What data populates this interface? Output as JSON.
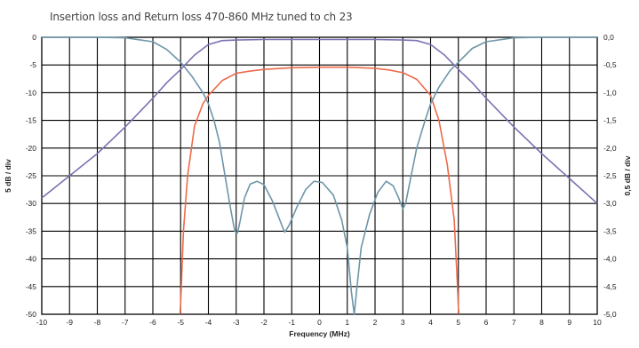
{
  "chart_data": {
    "type": "line",
    "title": "Insertion loss and Return loss 470-860 MHz tuned to ch 23",
    "xlabel": "Frequency (MHz)",
    "ylabel_left": "5 dB / div",
    "ylabel_right": "0,5 dB / div",
    "xlim": [
      -10,
      10
    ],
    "ylim_left": [
      -50,
      0
    ],
    "ylim_right": [
      -5.0,
      0.0
    ],
    "x_ticks": [
      "-10",
      "-9",
      "-8",
      "-7",
      "-6",
      "-5",
      "-4",
      "-3",
      "-2",
      "-1",
      "0",
      "1",
      "2",
      "3",
      "4",
      "5",
      "6",
      "7",
      "8",
      "9",
      "10"
    ],
    "y_ticks_left": [
      "0",
      "-5",
      "-10",
      "-15",
      "-20",
      "-25",
      "-30",
      "-35",
      "-40",
      "-45",
      "-50"
    ],
    "y_ticks_right": [
      "0,0",
      "-0,5",
      "-1,0",
      "-1,5",
      "-2,0",
      "-2,5",
      "-3,0",
      "-3,5",
      "-4,0",
      "-4,5",
      "-5,0"
    ],
    "grid": true,
    "series": [
      {
        "color": "#ee6a4a",
        "axis": "left",
        "points": [
          [
            -5.02,
            -50
          ],
          [
            -5.0,
            -48
          ],
          [
            -4.9,
            -35
          ],
          [
            -4.75,
            -25
          ],
          [
            -4.5,
            -16
          ],
          [
            -4.2,
            -12
          ],
          [
            -4.0,
            -10.5
          ],
          [
            -3.5,
            -7.8
          ],
          [
            -3.0,
            -6.5
          ],
          [
            -2.5,
            -6.1
          ],
          [
            -2,
            -5.8
          ],
          [
            -1,
            -5.5
          ],
          [
            0,
            -5.4
          ],
          [
            1,
            -5.4
          ],
          [
            2,
            -5.6
          ],
          [
            2.5,
            -5.9
          ],
          [
            3.0,
            -6.4
          ],
          [
            3.5,
            -7.6
          ],
          [
            4.0,
            -10.5
          ],
          [
            4.3,
            -15
          ],
          [
            4.6,
            -23
          ],
          [
            4.85,
            -33
          ],
          [
            4.97,
            -45
          ],
          [
            5.0,
            -49
          ],
          [
            5.02,
            -50
          ]
        ]
      },
      {
        "color": "#6d96a8",
        "axis": "left",
        "points": [
          [
            -10,
            0
          ],
          [
            -8,
            0
          ],
          [
            -7,
            -0.1
          ],
          [
            -6,
            -0.8
          ],
          [
            -5.5,
            -2.2
          ],
          [
            -5,
            -4.5
          ],
          [
            -4.6,
            -7
          ],
          [
            -4.2,
            -10
          ],
          [
            -4.0,
            -12
          ],
          [
            -3.8,
            -15
          ],
          [
            -3.6,
            -19
          ],
          [
            -3.4,
            -25
          ],
          [
            -3.2,
            -31
          ],
          [
            -3.05,
            -35
          ],
          [
            -2.95,
            -35.3
          ],
          [
            -2.85,
            -33
          ],
          [
            -2.7,
            -29
          ],
          [
            -2.5,
            -26.5
          ],
          [
            -2.25,
            -26
          ],
          [
            -2,
            -26.6
          ],
          [
            -1.7,
            -29.5
          ],
          [
            -1.35,
            -34
          ],
          [
            -1.25,
            -35.2
          ],
          [
            -1.1,
            -34
          ],
          [
            -0.8,
            -30.5
          ],
          [
            -0.5,
            -27.5
          ],
          [
            -0.2,
            -26
          ],
          [
            0.1,
            -26.2
          ],
          [
            0.5,
            -28.5
          ],
          [
            0.8,
            -33
          ],
          [
            1.0,
            -38
          ],
          [
            1.15,
            -46
          ],
          [
            1.25,
            -50
          ],
          [
            1.35,
            -45
          ],
          [
            1.5,
            -38
          ],
          [
            1.8,
            -32
          ],
          [
            2.1,
            -28
          ],
          [
            2.4,
            -26
          ],
          [
            2.65,
            -26.8
          ],
          [
            2.85,
            -29
          ],
          [
            3.0,
            -31
          ],
          [
            3.1,
            -30
          ],
          [
            3.3,
            -25
          ],
          [
            3.5,
            -20
          ],
          [
            3.8,
            -15
          ],
          [
            4.0,
            -12
          ],
          [
            4.3,
            -9
          ],
          [
            4.7,
            -6
          ],
          [
            5,
            -4.5
          ],
          [
            5.5,
            -2
          ],
          [
            6,
            -0.8
          ],
          [
            7,
            -0.1
          ],
          [
            8,
            0
          ],
          [
            10,
            0
          ]
        ]
      },
      {
        "color": "#7a72b2",
        "axis": "right",
        "points": [
          [
            -10,
            -2.9
          ],
          [
            -9,
            -2.5
          ],
          [
            -8,
            -2.1
          ],
          [
            -7,
            -1.62
          ],
          [
            -6,
            -1.1
          ],
          [
            -5.5,
            -0.82
          ],
          [
            -5,
            -0.58
          ],
          [
            -4.5,
            -0.32
          ],
          [
            -4,
            -0.13
          ],
          [
            -3.5,
            -0.06
          ],
          [
            -3,
            -0.05
          ],
          [
            -2,
            -0.04
          ],
          [
            0,
            -0.04
          ],
          [
            2,
            -0.04
          ],
          [
            3,
            -0.05
          ],
          [
            3.5,
            -0.06
          ],
          [
            4,
            -0.13
          ],
          [
            4.5,
            -0.32
          ],
          [
            5,
            -0.58
          ],
          [
            5.5,
            -0.82
          ],
          [
            6,
            -1.1
          ],
          [
            7,
            -1.62
          ],
          [
            8,
            -2.1
          ],
          [
            9,
            -2.55
          ],
          [
            10,
            -3.0
          ]
        ]
      }
    ]
  }
}
